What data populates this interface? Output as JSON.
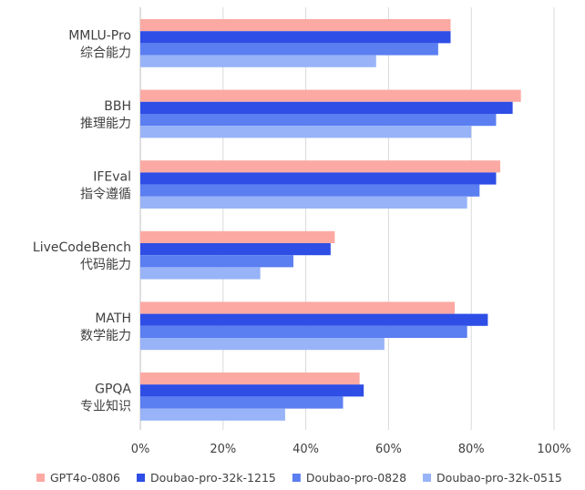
{
  "chart_data": {
    "type": "bar",
    "orientation": "horizontal",
    "categories": [
      {
        "name": "MMLU-Pro",
        "sub": "综合能力"
      },
      {
        "name": "BBH",
        "sub": "推理能力"
      },
      {
        "name": "IFEval",
        "sub": "指令遵循"
      },
      {
        "name": "LiveCodeBench",
        "sub": "代码能力"
      },
      {
        "name": "MATH",
        "sub": "数学能力"
      },
      {
        "name": "GPQA",
        "sub": "专业知识"
      }
    ],
    "series": [
      {
        "name": "GPT4o-0806",
        "color": "#fca9a3",
        "values": [
          75,
          92,
          87,
          47,
          76,
          53
        ]
      },
      {
        "name": "Doubao-pro-32k-1215",
        "color": "#2e4ee6",
        "values": [
          75,
          90,
          86,
          46,
          84,
          54
        ]
      },
      {
        "name": "Doubao-pro-0828",
        "color": "#5b7ef1",
        "values": [
          72,
          86,
          82,
          37,
          79,
          49
        ]
      },
      {
        "name": "Doubao-pro-32k-0515",
        "color": "#98b3f7",
        "values": [
          57,
          80,
          79,
          29,
          59,
          35
        ]
      }
    ],
    "x_ticks": [
      "0%",
      "20%",
      "40%",
      "60%",
      "80%",
      "100%"
    ],
    "xlim": [
      0,
      100
    ],
    "grid": true,
    "legend_position": "bottom",
    "title": "",
    "xlabel": "",
    "ylabel": ""
  }
}
